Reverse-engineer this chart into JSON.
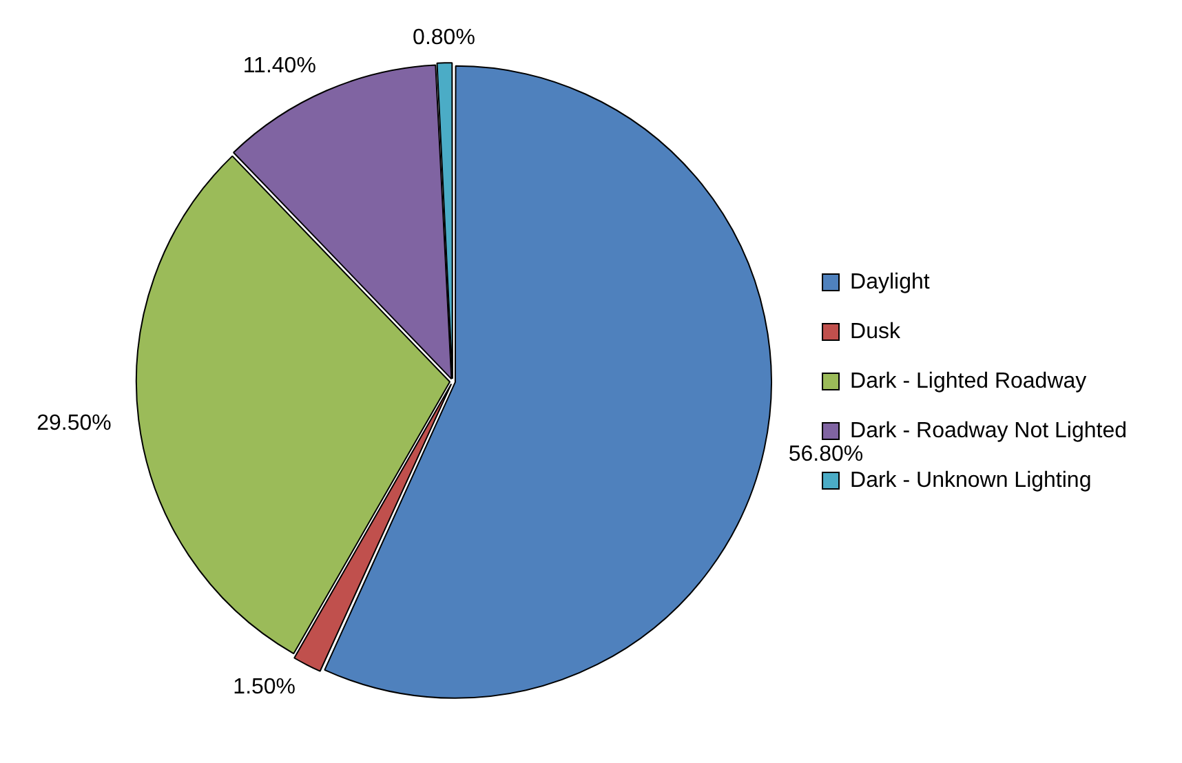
{
  "chart_data": {
    "type": "pie",
    "categories": [
      "Daylight",
      "Dusk",
      "Dark - Lighted Roadway",
      "Dark - Roadway Not Lighted",
      "Dark - Unknown Lighting"
    ],
    "values": [
      56.8,
      1.5,
      29.5,
      11.4,
      0.8
    ],
    "value_labels": [
      "56.80%",
      "1.50%",
      "29.50%",
      "11.40%",
      "0.80%"
    ],
    "colors": [
      "#4f81bd",
      "#c0504d",
      "#9bbb59",
      "#8064a2",
      "#4bacc6"
    ],
    "legend": "right"
  }
}
